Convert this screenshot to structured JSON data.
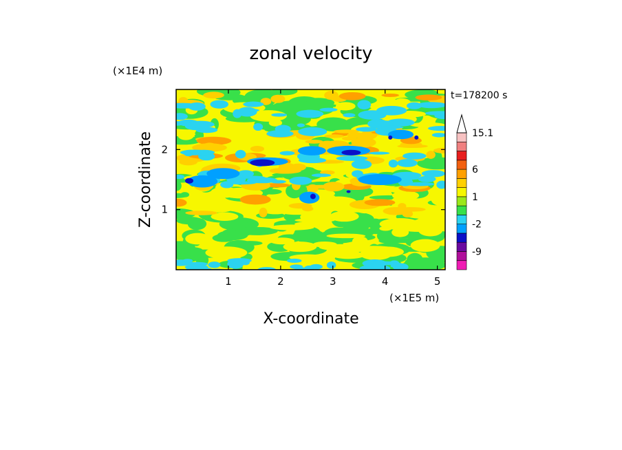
{
  "chart_data": {
    "type": "heatmap",
    "title": "zonal velocity",
    "xlabel": "X-coordinate",
    "ylabel": "Z-coordinate",
    "x_unit": "(×1E5 m)",
    "y_unit": "(×1E4 m)",
    "time_label": "t=178200 s",
    "xlim": [
      0,
      5.15
    ],
    "ylim": [
      0,
      3.0
    ],
    "x_ticks": [
      "1",
      "2",
      "3",
      "4",
      "5"
    ],
    "x_tick_values": [
      1,
      2,
      3,
      4,
      5
    ],
    "y_ticks": [
      "1",
      "2"
    ],
    "y_tick_values": [
      1,
      2
    ],
    "colorbar": {
      "levels": [
        -15.1,
        -12,
        -9,
        -6,
        -3.5,
        -2,
        -1,
        0.5,
        1,
        2,
        3,
        6,
        9,
        12,
        15.1
      ],
      "colors": [
        "#f01cb4",
        "#b00e9b",
        "#6a0aa0",
        "#0a10c8",
        "#00a0ff",
        "#2bd3f0",
        "#38e04a",
        "#9be81a",
        "#f7f700",
        "#ffd000",
        "#ffa000",
        "#f26010",
        "#e81e1e",
        "#f08080",
        "#f7c2c2"
      ],
      "tick_labels": [
        "15.1",
        "6",
        "1",
        "-2",
        "-9"
      ],
      "tick_values": [
        15.1,
        6,
        1,
        -2,
        -9
      ],
      "extend": "max"
    },
    "dominant_values": "Mostly yellow/green (-1 to 1) with bands of cyan/blue (negative) and orange (positive) at heights 1.2–2.6 ×1E4 m"
  }
}
